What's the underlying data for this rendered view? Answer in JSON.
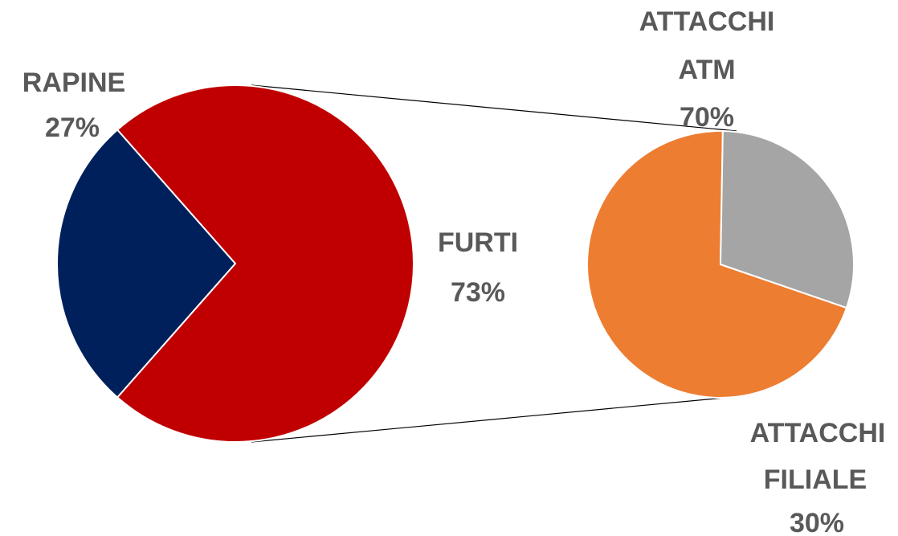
{
  "chart_data": {
    "type": "pie",
    "subtype": "pie-of-pie",
    "main": {
      "slices": [
        {
          "name": "RAPINE",
          "value": 27,
          "label": "27%",
          "color": "#00205B"
        },
        {
          "name": "FURTI",
          "value": 73,
          "label": "73%",
          "color": "#C00000"
        }
      ]
    },
    "secondary": {
      "parent": "FURTI",
      "slices": [
        {
          "name": "ATTACCHI ATM",
          "name_lines": [
            "ATTACCHI",
            "ATM"
          ],
          "value": 70,
          "label": "70%",
          "color": "#ED7D31"
        },
        {
          "name": "ATTACCHI FILIALE",
          "name_lines": [
            "ATTACCHI",
            "FILIALE"
          ],
          "value": 30,
          "label": "30%",
          "color": "#A5A5A5"
        }
      ]
    },
    "legend": "none"
  }
}
